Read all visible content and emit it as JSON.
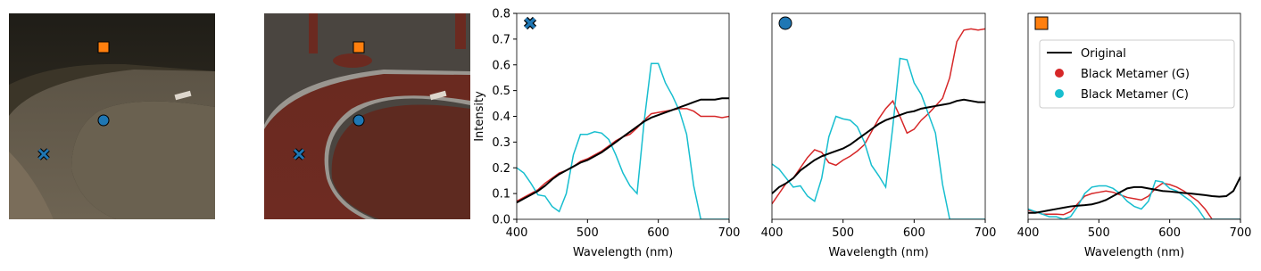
{
  "chart_data": [
    {
      "type": "line",
      "marker": "x",
      "xlabel": "Wavelength (nm)",
      "ylabel": "Intensity",
      "x": [
        400,
        410,
        420,
        430,
        440,
        450,
        460,
        470,
        480,
        490,
        500,
        510,
        520,
        530,
        540,
        550,
        560,
        570,
        580,
        590,
        600,
        610,
        620,
        630,
        640,
        650,
        660,
        670,
        680,
        690,
        700
      ],
      "xlim": [
        400,
        700
      ],
      "xticks": [
        400,
        500,
        600,
        700
      ],
      "ylim": [
        0,
        0.8
      ],
      "yticks": [
        0.0,
        0.1,
        0.2,
        0.3,
        0.4,
        0.5,
        0.6,
        0.7,
        0.8
      ],
      "series": [
        {
          "color": "#d62728",
          "values": [
            0.07,
            0.085,
            0.1,
            0.115,
            0.14,
            0.16,
            0.18,
            0.19,
            0.205,
            0.225,
            0.235,
            0.25,
            0.265,
            0.285,
            0.305,
            0.32,
            0.33,
            0.355,
            0.385,
            0.41,
            0.415,
            0.42,
            0.425,
            0.43,
            0.43,
            0.42,
            0.4,
            0.4,
            0.4,
            0.395,
            0.4
          ]
        },
        {
          "color": "#17becf",
          "values": [
            0.2,
            0.18,
            0.14,
            0.095,
            0.09,
            0.05,
            0.03,
            0.1,
            0.25,
            0.33,
            0.33,
            0.34,
            0.335,
            0.31,
            0.25,
            0.18,
            0.13,
            0.1,
            0.38,
            0.605,
            0.605,
            0.53,
            0.48,
            0.42,
            0.33,
            0.13,
            0,
            0,
            0,
            0,
            0
          ]
        },
        {
          "color": "#000000",
          "values": [
            0.065,
            0.08,
            0.095,
            0.11,
            0.13,
            0.155,
            0.175,
            0.19,
            0.205,
            0.22,
            0.23,
            0.245,
            0.26,
            0.28,
            0.3,
            0.32,
            0.34,
            0.36,
            0.38,
            0.395,
            0.405,
            0.415,
            0.425,
            0.435,
            0.445,
            0.455,
            0.465,
            0.465,
            0.465,
            0.47,
            0.47
          ]
        }
      ]
    },
    {
      "type": "line",
      "marker": "o",
      "xlabel": "Wavelength (nm)",
      "x": [
        400,
        410,
        420,
        430,
        440,
        450,
        460,
        470,
        480,
        490,
        500,
        510,
        520,
        530,
        540,
        550,
        560,
        570,
        580,
        590,
        600,
        610,
        620,
        630,
        640,
        650,
        660,
        670,
        680,
        690,
        700
      ],
      "xlim": [
        400,
        700
      ],
      "xticks": [
        400,
        500,
        600,
        700
      ],
      "ylim": [
        0,
        0.8
      ],
      "series": [
        {
          "color": "#d62728",
          "values": [
            0.06,
            0.1,
            0.14,
            0.16,
            0.2,
            0.24,
            0.27,
            0.26,
            0.22,
            0.21,
            0.23,
            0.245,
            0.265,
            0.29,
            0.34,
            0.39,
            0.43,
            0.46,
            0.4,
            0.335,
            0.35,
            0.385,
            0.41,
            0.44,
            0.47,
            0.55,
            0.69,
            0.735,
            0.74,
            0.735,
            0.74
          ]
        },
        {
          "color": "#17becf",
          "values": [
            0.215,
            0.195,
            0.16,
            0.125,
            0.13,
            0.09,
            0.07,
            0.16,
            0.32,
            0.4,
            0.39,
            0.385,
            0.36,
            0.3,
            0.21,
            0.17,
            0.125,
            0.36,
            0.625,
            0.62,
            0.53,
            0.485,
            0.41,
            0.335,
            0.135,
            0,
            0,
            0,
            0,
            0,
            0
          ]
        },
        {
          "color": "#000000",
          "values": [
            0.1,
            0.125,
            0.14,
            0.16,
            0.19,
            0.21,
            0.23,
            0.245,
            0.255,
            0.265,
            0.275,
            0.29,
            0.31,
            0.33,
            0.35,
            0.37,
            0.385,
            0.395,
            0.405,
            0.415,
            0.42,
            0.43,
            0.435,
            0.44,
            0.445,
            0.45,
            0.46,
            0.465,
            0.46,
            0.455,
            0.455
          ]
        }
      ]
    },
    {
      "type": "line",
      "marker": "s",
      "xlabel": "Wavelength (nm)",
      "legend": "upper right",
      "x": [
        400,
        410,
        420,
        430,
        440,
        450,
        460,
        470,
        480,
        490,
        500,
        510,
        520,
        530,
        540,
        550,
        560,
        570,
        580,
        590,
        600,
        610,
        620,
        630,
        640,
        650,
        660,
        670,
        680,
        690,
        700
      ],
      "xlim": [
        400,
        700
      ],
      "xticks": [
        400,
        500,
        600,
        700
      ],
      "ylim": [
        0,
        0.8
      ],
      "series": [
        {
          "name": "Black Metamer (G)",
          "color": "#d62728",
          "values": [
            0.035,
            0.03,
            0.02,
            0.02,
            0.02,
            0.018,
            0.03,
            0.06,
            0.09,
            0.1,
            0.105,
            0.11,
            0.105,
            0.095,
            0.085,
            0.08,
            0.075,
            0.09,
            0.12,
            0.14,
            0.135,
            0.125,
            0.11,
            0.09,
            0.07,
            0.04,
            0,
            0,
            0,
            0,
            0
          ]
        },
        {
          "name": "Black Metamer (C)",
          "color": "#17becf",
          "values": [
            0.04,
            0.03,
            0.02,
            0.01,
            0.01,
            0,
            0.01,
            0.05,
            0.1,
            0.125,
            0.13,
            0.13,
            0.12,
            0.1,
            0.07,
            0.05,
            0.04,
            0.07,
            0.15,
            0.145,
            0.12,
            0.11,
            0.09,
            0.07,
            0.04,
            0,
            0,
            0,
            0,
            0,
            0
          ]
        },
        {
          "name": "Original",
          "color": "#000000",
          "values": [
            0.025,
            0.025,
            0.03,
            0.035,
            0.04,
            0.045,
            0.05,
            0.053,
            0.055,
            0.058,
            0.065,
            0.075,
            0.09,
            0.105,
            0.12,
            0.125,
            0.125,
            0.12,
            0.115,
            0.11,
            0.108,
            0.105,
            0.102,
            0.1,
            0.097,
            0.094,
            0.09,
            0.088,
            0.09,
            0.11,
            0.165
          ]
        }
      ]
    }
  ]
}
